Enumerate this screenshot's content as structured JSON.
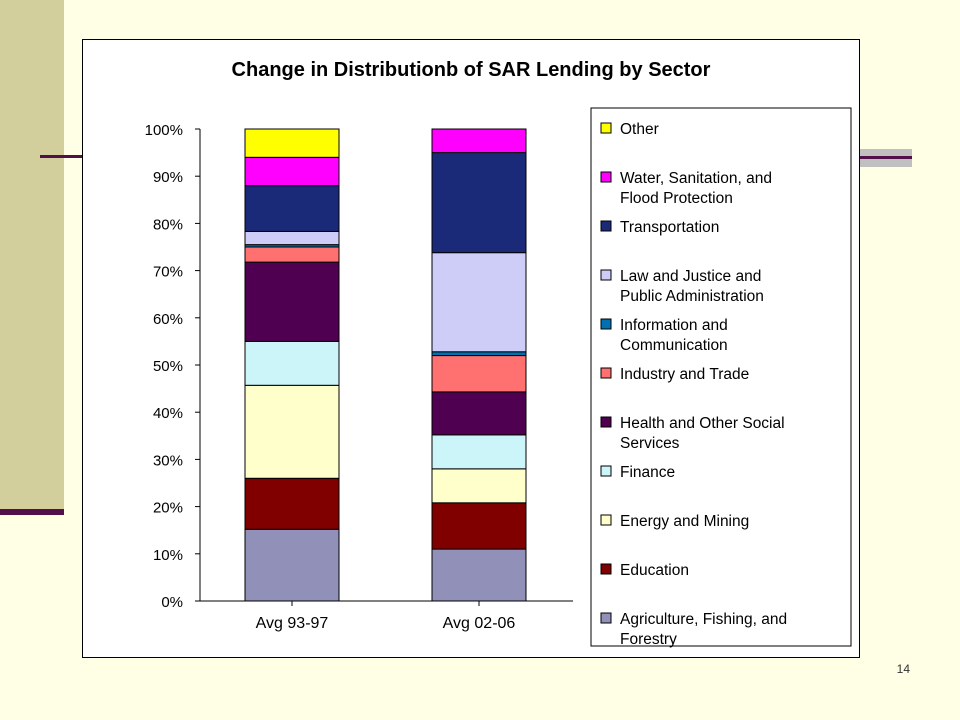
{
  "page_number": "14",
  "chart_data": {
    "type": "bar",
    "stacked": true,
    "title": "Change in Distributionb of SAR Lending by Sector",
    "xlabel": "",
    "ylabel": "",
    "ylim": [
      0,
      100
    ],
    "y_ticks": [
      "0%",
      "10%",
      "20%",
      "30%",
      "40%",
      "50%",
      "60%",
      "70%",
      "80%",
      "90%",
      "100%"
    ],
    "categories": [
      "Avg 93-97",
      "Avg 02-06"
    ],
    "legend_position": "right",
    "series": [
      {
        "name": "Agriculture, Fishing, and Forestry",
        "color": "#9090b8",
        "values": [
          15.2,
          11.0
        ]
      },
      {
        "name": "Education",
        "color": "#800000",
        "values": [
          10.8,
          9.8
        ]
      },
      {
        "name": "Energy and Mining",
        "color": "#ffffcc",
        "values": [
          19.7,
          7.2
        ]
      },
      {
        "name": "Finance",
        "color": "#ccf5fa",
        "values": [
          9.3,
          7.2
        ]
      },
      {
        "name": "Health and Other Social Services",
        "color": "#500050",
        "values": [
          16.8,
          9.1
        ]
      },
      {
        "name": "Industry and Trade",
        "color": "#ff7070",
        "values": [
          3.2,
          7.7
        ]
      },
      {
        "name": "Information and Communication",
        "color": "#0070b0",
        "values": [
          0.5,
          0.8
        ]
      },
      {
        "name": "Law and Justice and Public Administration",
        "color": "#cdcdf7",
        "values": [
          2.8,
          21.0
        ]
      },
      {
        "name": "Transportation",
        "color": "#1a2a78",
        "values": [
          9.7,
          21.2
        ]
      },
      {
        "name": "Water, Sanitation, and Flood Protection",
        "color": "#ff00ff",
        "values": [
          6.0,
          5.0
        ]
      },
      {
        "name": "Other",
        "color": "#ffff00",
        "values": [
          6.0,
          0.0
        ]
      }
    ]
  }
}
